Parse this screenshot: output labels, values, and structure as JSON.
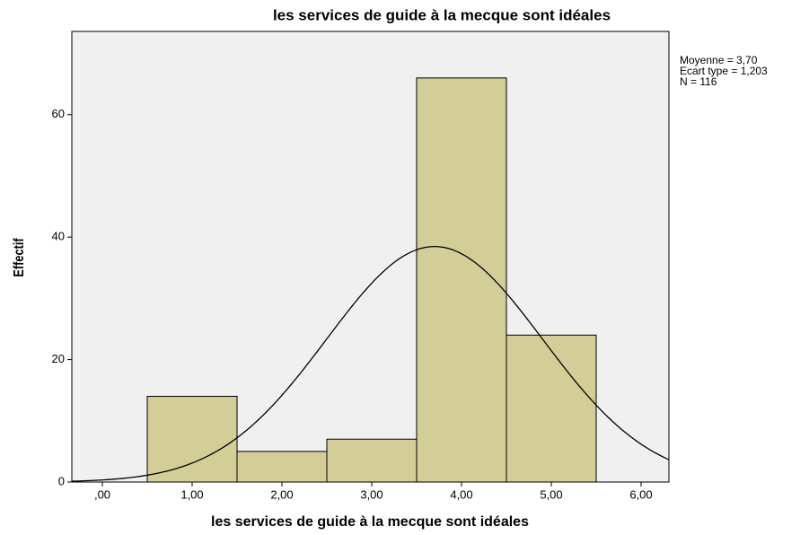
{
  "chart_data": {
    "type": "histogram",
    "title": "les services de guide à la mecque sont idéales",
    "x_label": "les services de guide à la mecque sont idéales",
    "y_label": "Effectif",
    "bins": [
      0.5,
      1.5,
      2.5,
      3.5,
      4.5,
      5.5
    ],
    "values": [
      14,
      5,
      7,
      66,
      24
    ],
    "color": "#d3ce97",
    "background": "#f0f0f0",
    "xlim": [
      -0.34,
      6.31
    ],
    "xticks": [
      {
        "value": 0,
        "label": ",00"
      },
      {
        "value": 1,
        "label": "1,00"
      },
      {
        "value": 2,
        "label": "2,00"
      },
      {
        "value": 3,
        "label": "3,00"
      },
      {
        "value": 4,
        "label": "4,00"
      },
      {
        "value": 5,
        "label": "5,00"
      },
      {
        "value": 6,
        "label": "6,00"
      }
    ],
    "ylim": [
      0,
      73.6
    ],
    "yticks": [
      0,
      20,
      40,
      60
    ],
    "normal_curve": {
      "mean": {
        "value": 3.7,
        "label": "Moyenne = 3,70"
      },
      "sd": {
        "value": 1.203,
        "label": "Ecart type = 1,203"
      },
      "n": {
        "value": 116,
        "label": "N = 116"
      }
    }
  }
}
